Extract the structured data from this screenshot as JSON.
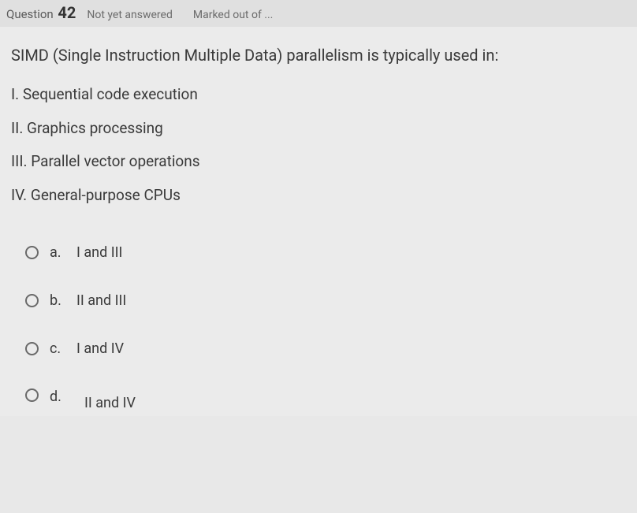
{
  "header": {
    "question_label": "Question",
    "question_number": "42",
    "status": "Not yet answered",
    "marked": "Marked out of ..."
  },
  "question": {
    "prompt": "SIMD (Single Instruction Multiple Data) parallelism is typically used in:",
    "statements": [
      "I. Sequential code execution",
      "II. Graphics processing",
      "III. Parallel vector operations",
      "IV. General-purpose CPUs"
    ],
    "options": [
      {
        "letter": "a.",
        "text": "I and III"
      },
      {
        "letter": "b.",
        "text": "II and III"
      },
      {
        "letter": "c.",
        "text": "I and IV"
      },
      {
        "letter": "d.",
        "text": "II and IV"
      }
    ]
  },
  "colors": {
    "background": "#e8e8e8",
    "header_bg": "#e0e0e0",
    "text_primary": "#3a3a3a",
    "text_secondary": "#6b6b6b",
    "radio_border": "#6a6a6a"
  }
}
